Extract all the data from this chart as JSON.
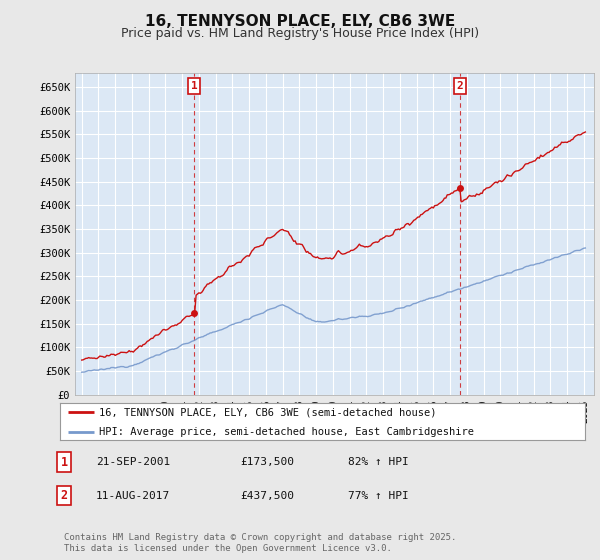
{
  "title": "16, TENNYSON PLACE, ELY, CB6 3WE",
  "subtitle": "Price paid vs. HM Land Registry's House Price Index (HPI)",
  "ylabel_ticks": [
    "£0",
    "£50K",
    "£100K",
    "£150K",
    "£200K",
    "£250K",
    "£300K",
    "£350K",
    "£400K",
    "£450K",
    "£500K",
    "£550K",
    "£600K",
    "£650K"
  ],
  "ytick_values": [
    0,
    50000,
    100000,
    150000,
    200000,
    250000,
    300000,
    350000,
    400000,
    450000,
    500000,
    550000,
    600000,
    650000
  ],
  "ylim": [
    0,
    680000
  ],
  "xlim_start": 1994.6,
  "xlim_end": 2025.6,
  "hpi_color": "#7799cc",
  "price_color": "#cc1111",
  "marker1_year": 2001.72,
  "marker1_value": 173500,
  "marker2_year": 2017.61,
  "marker2_value": 437500,
  "legend_label1": "16, TENNYSON PLACE, ELY, CB6 3WE (semi-detached house)",
  "legend_label2": "HPI: Average price, semi-detached house, East Cambridgeshire",
  "table_rows": [
    {
      "num": "1",
      "date": "21-SEP-2001",
      "price": "£173,500",
      "pct": "82% ↑ HPI"
    },
    {
      "num": "2",
      "date": "11-AUG-2017",
      "price": "£437,500",
      "pct": "77% ↑ HPI"
    }
  ],
  "footer": "Contains HM Land Registry data © Crown copyright and database right 2025.\nThis data is licensed under the Open Government Licence v3.0.",
  "bg_color": "#e8e8e8",
  "plot_bg_color": "#dce8f5",
  "grid_color": "#ffffff",
  "title_fontsize": 11,
  "subtitle_fontsize": 9
}
